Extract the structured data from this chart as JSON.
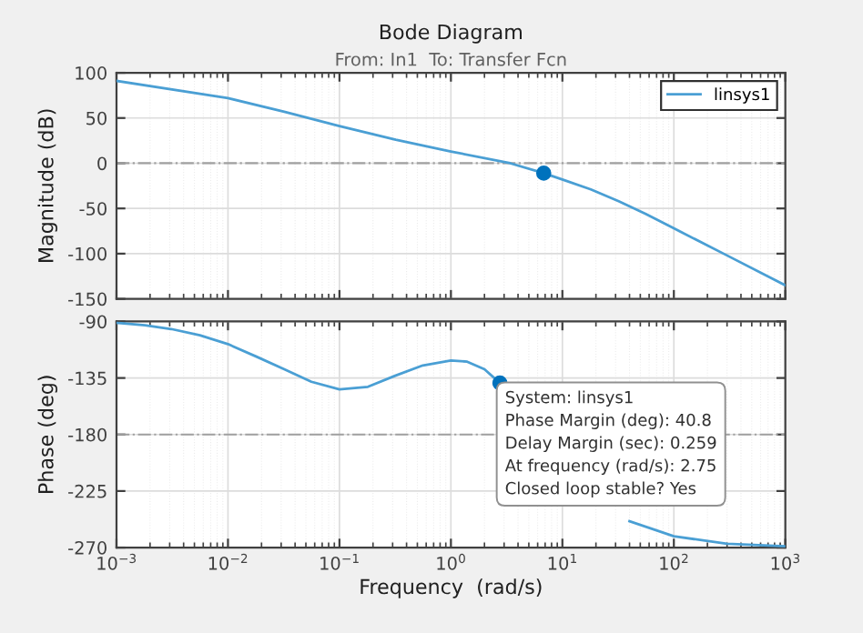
{
  "chart_data": [
    {
      "type": "line",
      "title": "Bode Diagram",
      "subtitle": "From: In1  To: Transfer Fcn",
      "ylabel": "Magnitude (dB)",
      "log": "x",
      "grid": true,
      "legend": "top right",
      "tick_labels": "y",
      "xlim": [
        0.001,
        1000
      ],
      "xticks": [
        0.001,
        0.01,
        0.1,
        1,
        10,
        100,
        1000
      ],
      "ylim": [
        -150,
        100
      ],
      "yticks": [
        -150,
        -100,
        -50,
        0,
        50,
        100
      ],
      "ref_lines": [
        {
          "axis": "y",
          "value": 0,
          "color": "#a0a0a0",
          "line_style": "dashdot"
        }
      ],
      "series": [
        {
          "name": "linsys1",
          "color": "#4a9fd4",
          "x": [
            0.001,
            0.01,
            0.032,
            0.1,
            0.32,
            1,
            3.4,
            6.8,
            10,
            18,
            32,
            56,
            100,
            300,
            1000
          ],
          "values": [
            91,
            72,
            57,
            41,
            26,
            13,
            0,
            -11,
            -18,
            -29,
            -42,
            -56,
            -72,
            -102,
            -135
          ]
        },
        {
          "type": "scatter",
          "color": "#0072bd",
          "marker": "circle",
          "x": [
            6.8
          ],
          "values": [
            -11
          ]
        }
      ]
    },
    {
      "type": "line",
      "xlabel": "Frequency  (rad/s)",
      "ylabel": "Phase (deg)",
      "log": "x",
      "grid": true,
      "xlim": [
        0.001,
        1000
      ],
      "xticks": [
        {
          "value": 0.001,
          "label": "10$^{−3}$"
        },
        {
          "value": 0.01,
          "label": "10$^{−2}$"
        },
        {
          "value": 0.1,
          "label": "10$^{−1}$"
        },
        {
          "value": 1,
          "label": "10$^{0}$"
        },
        {
          "value": 10,
          "label": "10$^{1}$"
        },
        {
          "value": 100,
          "label": "10$^{2}$"
        },
        {
          "value": 1000,
          "label": "10$^{3}$"
        }
      ],
      "ylim": [
        -270,
        -90
      ],
      "yticks": [
        -270,
        -225,
        -180,
        -135,
        -90
      ],
      "ref_lines": [
        {
          "axis": "y",
          "value": -180,
          "color": "#a0a0a0",
          "line_style": "dashdot"
        }
      ],
      "annotations": [
        {
          "text": "System: linsys1\nPhase Margin (deg): 40.8\nDelay Margin (sec): 0.259\nAt frequency (rad/s): 2.75\nClosed loop stable? Yes",
          "x": 2.75,
          "y": -139
        }
      ],
      "series": [
        {
          "color": "#4a9fd4",
          "x": [
            0.001,
            0.0018,
            0.0031,
            0.0056,
            0.01,
            0.018,
            0.032,
            0.056,
            0.1,
            0.18,
            0.32,
            0.56,
            1,
            1.4,
            2.0,
            2.75,
            10,
            20,
            40,
            100,
            300,
            1000
          ],
          "values": [
            -91,
            -93,
            -96,
            -101,
            -108,
            -118,
            -128,
            -138,
            -144,
            -142,
            -133,
            -125,
            -121,
            -122,
            -128,
            -139,
            null,
            null,
            -249,
            -261,
            -267,
            -269
          ]
        },
        {
          "type": "scatter",
          "color": "#0072bd",
          "marker": "circle",
          "x": [
            2.75
          ],
          "values": [
            -139
          ]
        }
      ]
    }
  ]
}
